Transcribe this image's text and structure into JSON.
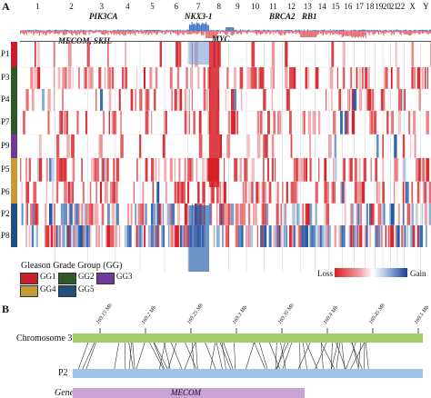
{
  "panels": {
    "a_label": "A",
    "b_label": "B"
  },
  "chromosomes": [
    "1",
    "2",
    "3",
    "4",
    "5",
    "6",
    "7",
    "8",
    "9",
    "10",
    "11",
    "12",
    "13",
    "14",
    "15",
    "16",
    "17",
    "18",
    "19",
    "20",
    "21",
    "22",
    "X",
    "Y"
  ],
  "genes_top": [
    "PIK3CA",
    "NKX3-1",
    "BRCA2",
    "RB1"
  ],
  "genes_bottom": [
    "MECOM, SKIL",
    "MYC"
  ],
  "patients": [
    {
      "id": "P1",
      "group": "GG1"
    },
    {
      "id": "P3",
      "group": "GG2"
    },
    {
      "id": "P4",
      "group": "GG2"
    },
    {
      "id": "P7",
      "group": "GG2"
    },
    {
      "id": "P9",
      "group": "GG3"
    },
    {
      "id": "P5",
      "group": "GG4"
    },
    {
      "id": "P6",
      "group": "GG4"
    },
    {
      "id": "P2",
      "group": "GG5"
    },
    {
      "id": "P8",
      "group": "GG5"
    }
  ],
  "legend": {
    "title": "Gleason Grade Group (GG)",
    "items": [
      {
        "label": "GG1",
        "color": "#c8202a"
      },
      {
        "label": "GG2",
        "color": "#2f5a28"
      },
      {
        "label": "GG3",
        "color": "#6f3a9a"
      },
      {
        "label": "GG4",
        "color": "#c79a35"
      },
      {
        "label": "GG5",
        "color": "#244f7c"
      }
    ],
    "loss": "Loss",
    "gain": "Gain"
  },
  "colors": {
    "loss": "#d71f26",
    "gain": "#1d57a8",
    "chromosome_track": "#a2cc6a",
    "p2_track": "#9fc3e6",
    "gene_track": "#c9a3d8"
  },
  "panel_b": {
    "markers": [
      "169.15 Mb",
      "169.2 Mb",
      "169.25 Mb",
      "169.3 Mb",
      "169.35 Mb",
      "169.4 Mb",
      "169.45 Mb",
      "169.5 Mb"
    ],
    "chromosome_label": "Chromosome 3",
    "sample_label": "P2",
    "gene_row_label": "Gene",
    "gene_name": "MECOM"
  }
}
